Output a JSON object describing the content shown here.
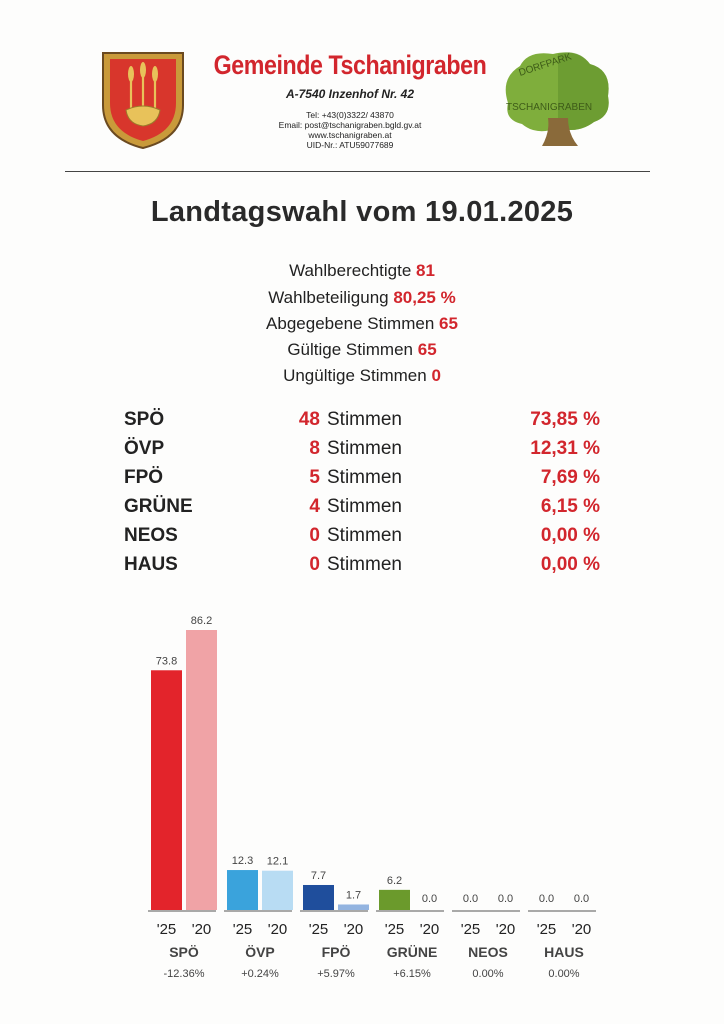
{
  "header": {
    "org_name": "Gemeinde Tschanigraben",
    "address": "A-7540 Inzenhof Nr. 42",
    "tel": "Tel: +43(0)3322/ 43870",
    "email": "Email: post@tschanigraben.bgld.gv.at",
    "web": "www.tschanigraben.at",
    "uid": "UID-Nr.: ATU59077689",
    "logo_text_top": "DORFPARK",
    "logo_text_bottom": "TSCHANIGRABEN",
    "colors": {
      "brand_red": "#d2262d",
      "crest_red": "#d8362c",
      "crest_gold": "#c99a3a",
      "tree_green": "#7fae3c",
      "trunk_brown": "#8a6a3a"
    }
  },
  "title": "Landtagswahl vom 19.01.2025",
  "stats": [
    {
      "label": "Wahlberechtigte",
      "value": "81"
    },
    {
      "label": "Wahlbeteiligung",
      "value": "80,25 %"
    },
    {
      "label": "Abgegebene Stimmen",
      "value": "65"
    },
    {
      "label": "Gültige Stimmen",
      "value": "65"
    },
    {
      "label": "Ungültige Stimmen",
      "value": "0"
    }
  ],
  "results_unit": "Stimmen",
  "results": [
    {
      "party": "SPÖ",
      "votes": "48",
      "percent": "73,85 %"
    },
    {
      "party": "ÖVP",
      "votes": "8",
      "percent": "12,31 %"
    },
    {
      "party": "FPÖ",
      "votes": "5",
      "percent": "7,69 %"
    },
    {
      "party": "GRÜNE",
      "votes": "4",
      "percent": "6,15 %"
    },
    {
      "party": "NEOS",
      "votes": "0",
      "percent": "0,00 %"
    },
    {
      "party": "HAUS",
      "votes": "0",
      "percent": "0,00 %"
    }
  ],
  "chart_data": {
    "type": "bar",
    "categories": [
      "SPÖ",
      "ÖVP",
      "FPÖ",
      "GRÜNE",
      "NEOS",
      "HAUS"
    ],
    "series": [
      {
        "name": "'25",
        "values": [
          73.8,
          12.3,
          7.7,
          6.2,
          0.0,
          0.0
        ]
      },
      {
        "name": "'20",
        "values": [
          86.2,
          12.1,
          1.7,
          0.0,
          0.0,
          0.0
        ]
      }
    ],
    "value_labels": {
      "'25": [
        "73.8",
        "12.3",
        "7.7",
        "6.2",
        "0.0",
        "0.0"
      ],
      "'20": [
        "86.2",
        "12.1",
        "1.7",
        "0.0",
        "0.0",
        "0.0"
      ]
    },
    "changes": [
      "-12.36%",
      "+0.24%",
      "+5.97%",
      "+6.15%",
      "0.00%",
      "0.00%"
    ],
    "colors": {
      "'25": [
        "#e3242b",
        "#3aa3dc",
        "#1f4e9c",
        "#6b9a2c",
        "#d0d0d0",
        "#d0d0d0"
      ],
      "'20": [
        "#f0a3a6",
        "#b8dcf3",
        "#93b4e0",
        "#b6d08d",
        "#e6e6e6",
        "#e6e6e6"
      ]
    },
    "ylim": [
      0,
      86.2
    ],
    "grid": false,
    "legend": "none"
  }
}
